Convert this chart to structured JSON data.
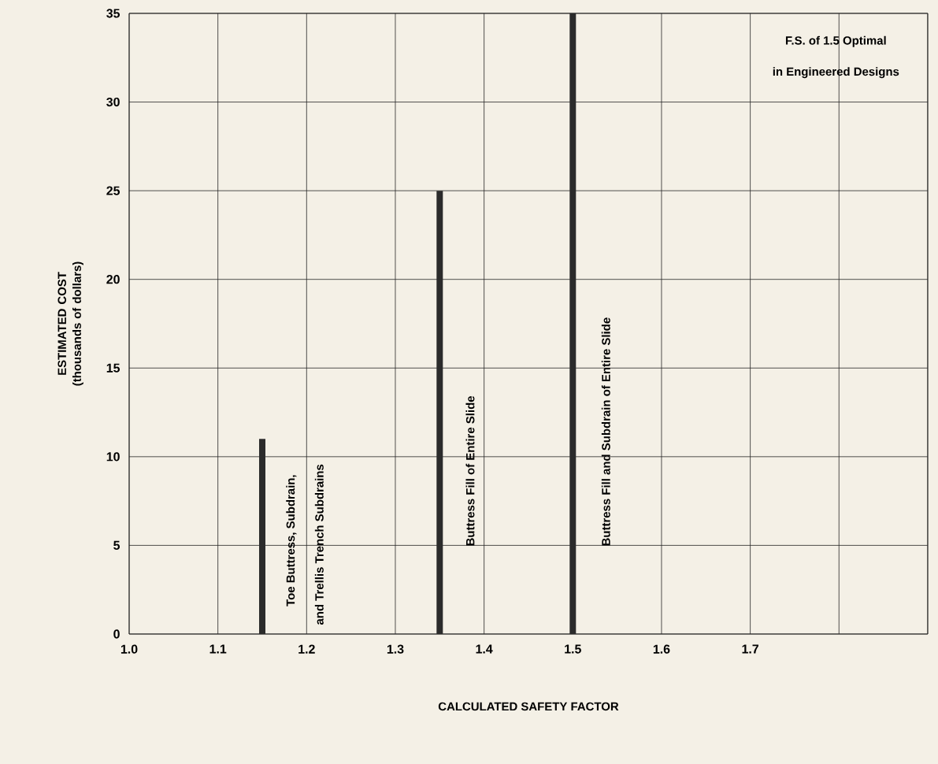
{
  "chart_data": {
    "type": "bar",
    "xlabel": "CALCULATED SAFETY FACTOR",
    "ylabel": "ESTIMATED COST (thousands of dollars)",
    "x": [
      1.15,
      1.35,
      1.5
    ],
    "values": [
      11,
      25,
      35
    ],
    "color": "#2b2b2b",
    "xlim": [
      1.0,
      1.9
    ],
    "xticks": [
      {
        "value": 1.0,
        "label": "1.0"
      },
      1.1,
      1.2,
      1.3,
      1.4,
      1.5,
      1.6,
      1.7,
      {
        "value": 1.8,
        "label": null
      },
      {
        "value": 1.9,
        "label": null
      }
    ],
    "ylim": [
      0,
      35
    ],
    "yticks": [
      0,
      5,
      10,
      15,
      20,
      25,
      30,
      35
    ],
    "grid": true,
    "annotations": [
      "Toe Buttress, Subdrain,",
      "and Trellis Trench Subdrains",
      "Buttress Fill of Entire Slide",
      "Buttress Fill and Subdrain of Entire Slide",
      "F.S. of 1.5 Optimal",
      "in Engineered Designs"
    ]
  }
}
